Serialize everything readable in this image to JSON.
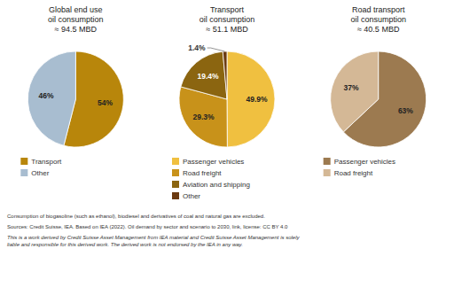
{
  "chart_data": [
    {
      "type": "pie",
      "title": "Global end use\noil consumption\n≈ 94.5 MBD",
      "categories": [
        "Transport",
        "Other"
      ],
      "values": [
        54,
        46
      ],
      "value_labels": [
        "54%",
        "46%"
      ],
      "colors": [
        "#B8860B",
        "#A8BDD0"
      ],
      "data_labels": true,
      "legend": "bottom"
    },
    {
      "type": "pie",
      "title": "Transport\noil consumption\n≈ 51.1 MBD",
      "categories": [
        "Passenger vehicles",
        "Road freight",
        "Aviation and shipping",
        "Other"
      ],
      "values": [
        49.9,
        29.3,
        19.4,
        1.4
      ],
      "value_labels": [
        "49.9%",
        "29.3%",
        "19.4%",
        "1.4%"
      ],
      "colors": [
        "#F0C040",
        "#C8921A",
        "#8B6510",
        "#6B3A10"
      ],
      "data_labels": true,
      "legend": "bottom"
    },
    {
      "type": "pie",
      "title": "Road transport\noil consumption\n≈ 40.5 MBD",
      "categories": [
        "Passenger vehicles",
        "Road freight"
      ],
      "values": [
        63,
        37
      ],
      "value_labels": [
        "63%",
        "37%"
      ],
      "colors": [
        "#9C7A50",
        "#D4B896"
      ],
      "data_labels": true,
      "legend": "bottom"
    }
  ],
  "annotations": [
    "Consumption of biogasoline (such as ethanol), biodiesel and derivatives of coal and natural gas are excluded.",
    "Sources: Credit Suisse, IEA. Based on IEA (2022). Oil demand by sector and scenario to 2030, link, license: CC BY 4.0",
    "This is a work derived by Credit Suisse Asset Management from IEA material and Credit Suisse Asset Management is solely\nliable and responsible for this derived work. The derived work is not endorsed by the IEA in any way."
  ]
}
